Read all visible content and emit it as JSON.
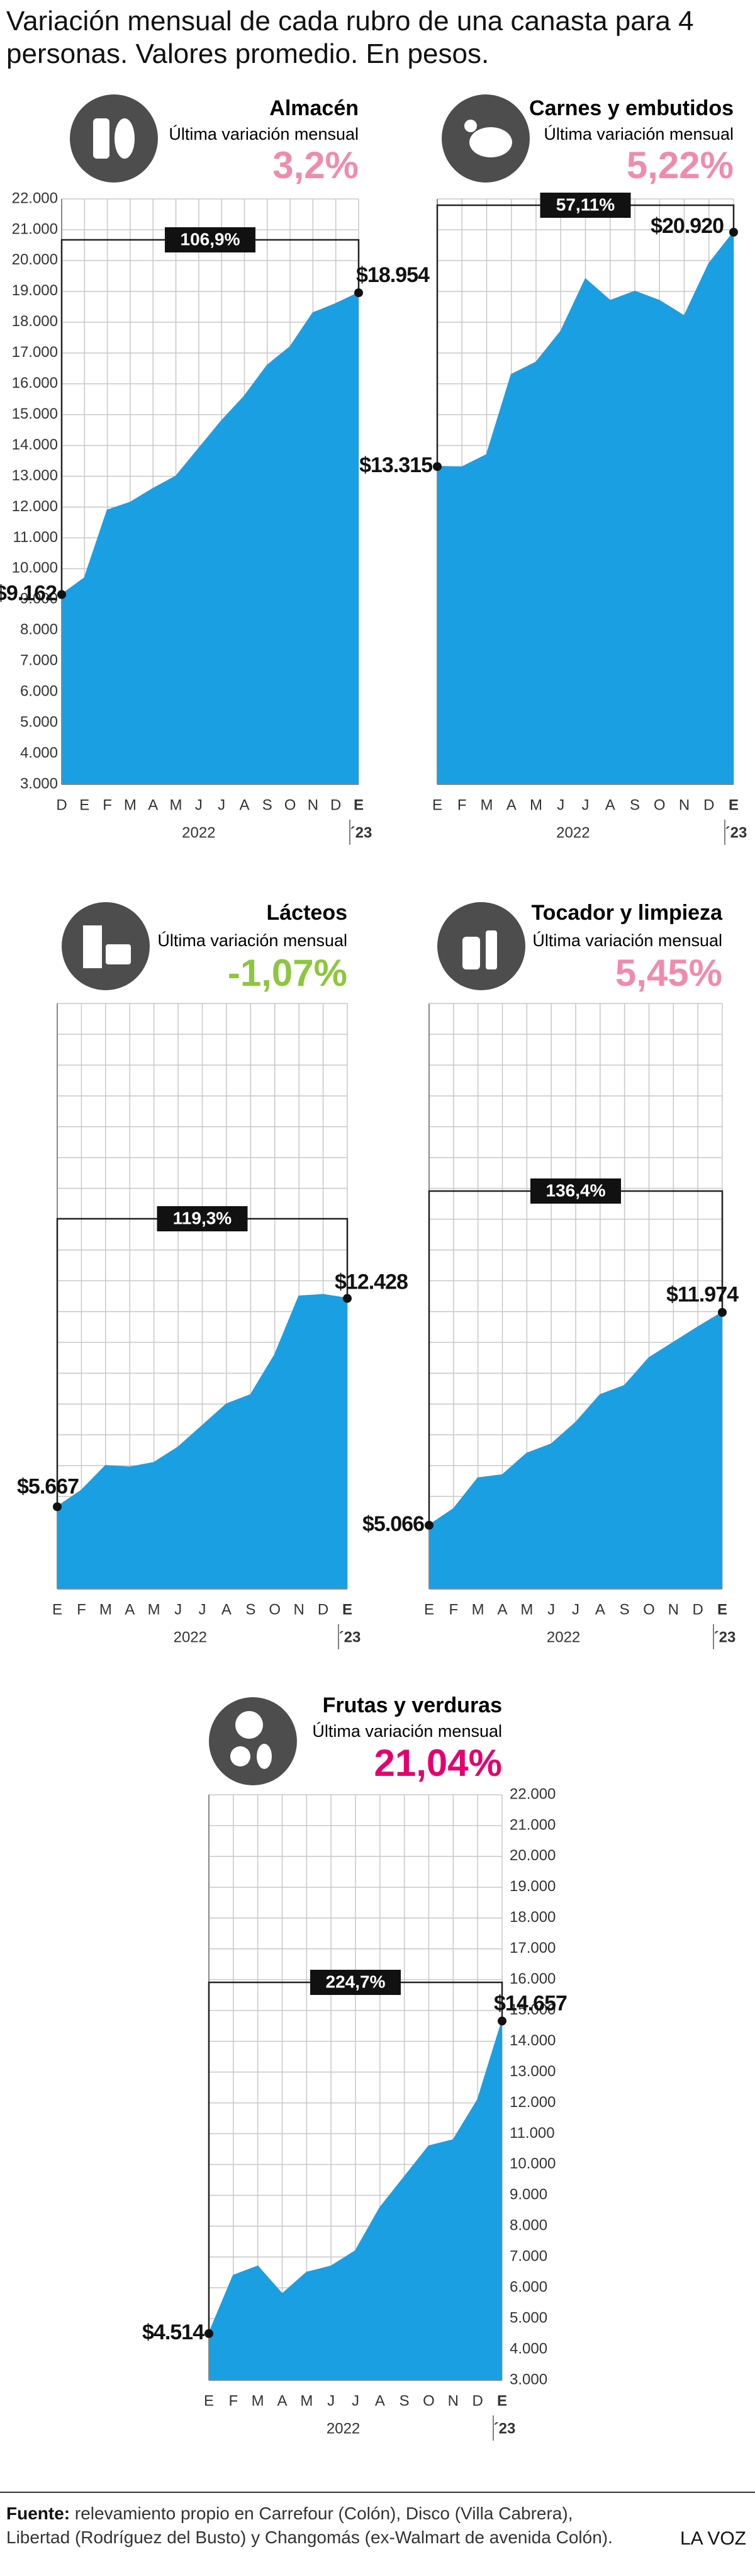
{
  "title": "Variación mensual de cada rubro de una canasta para 4 personas. Valores promedio. En pesos.",
  "chart_data": [
    {
      "type": "area",
      "title": "Almacén",
      "subtitle": "Última variación mensual",
      "highlight": "3,2%",
      "highlight_color": "#f08cab",
      "annotation": "106,9%",
      "categories": [
        "D",
        "E",
        "F",
        "M",
        "A",
        "M",
        "J",
        "J",
        "A",
        "S",
        "O",
        "N",
        "D",
        "E"
      ],
      "year_labels": [
        "2022",
        "´23"
      ],
      "values": [
        9162,
        9700,
        11900,
        12150,
        12600,
        13000,
        13900,
        14800,
        15600,
        16600,
        17200,
        18300,
        18600,
        18954
      ],
      "value_labels": [
        "$9.162",
        null,
        null,
        null,
        null,
        null,
        null,
        null,
        null,
        null,
        null,
        null,
        null,
        "$18.954"
      ],
      "color": "#1a9fe3",
      "ylim": [
        3000,
        22000
      ],
      "tick_labels": "left",
      "grid": true,
      "yticks": [
        {
          "value": 3000,
          "label": "3.000"
        },
        {
          "value": 4000,
          "label": "4.000"
        },
        {
          "value": 5000,
          "label": "5.000"
        },
        {
          "value": 6000,
          "label": "6.000"
        },
        {
          "value": 7000,
          "label": "7.000"
        },
        {
          "value": 8000,
          "label": "8.000"
        },
        {
          "value": 9000,
          "label": "9.000"
        },
        {
          "value": 10000,
          "label": "10.000"
        },
        {
          "value": 11000,
          "label": "11.000"
        },
        {
          "value": 12000,
          "label": "12.000"
        },
        {
          "value": 13000,
          "label": "13.000"
        },
        {
          "value": 14000,
          "label": "14.000"
        },
        {
          "value": 15000,
          "label": "15.000"
        },
        {
          "value": 16000,
          "label": "16.000"
        },
        {
          "value": 17000,
          "label": "17.000"
        },
        {
          "value": 18000,
          "label": "18.000"
        },
        {
          "value": 19000,
          "label": "19.000"
        },
        {
          "value": 20000,
          "label": "20.000"
        },
        {
          "value": 21000,
          "label": "21.000"
        },
        {
          "value": 22000,
          "label": "22.000"
        }
      ]
    },
    {
      "type": "area",
      "title": "Carnes y embutidos",
      "subtitle": "Última variación mensual",
      "highlight": "5,22%",
      "highlight_color": "#f08cab",
      "annotation": "57,11%",
      "categories": [
        "E",
        "F",
        "M",
        "A",
        "M",
        "J",
        "J",
        "A",
        "S",
        "O",
        "N",
        "D",
        "E"
      ],
      "year_labels": [
        "2022",
        "´23"
      ],
      "values": [
        13315,
        13300,
        13700,
        16300,
        16700,
        17700,
        19400,
        18700,
        19000,
        18700,
        18200,
        19900,
        20920
      ],
      "value_labels": [
        "$13.315",
        null,
        null,
        null,
        null,
        null,
        null,
        null,
        null,
        null,
        null,
        null,
        "$20.920"
      ],
      "color": "#1a9fe3",
      "ylim": [
        3000,
        22000
      ],
      "tick_labels": "none",
      "grid": true,
      "yticks": [
        3000,
        4000,
        5000,
        6000,
        7000,
        8000,
        9000,
        10000,
        11000,
        12000,
        13000,
        14000,
        15000,
        16000,
        17000,
        18000,
        19000,
        20000,
        21000,
        22000
      ]
    },
    {
      "type": "area",
      "title": "Lácteos",
      "subtitle": "Última variación mensual",
      "highlight": "-1,07%",
      "highlight_color": "#8dc63f",
      "annotation": "119,3%",
      "categories": [
        "E",
        "F",
        "M",
        "A",
        "M",
        "J",
        "J",
        "A",
        "S",
        "O",
        "N",
        "D",
        "E"
      ],
      "year_labels": [
        "2022",
        "´23"
      ],
      "values": [
        5667,
        6200,
        7000,
        6950,
        7100,
        7600,
        8300,
        9000,
        9300,
        10600,
        12500,
        12550,
        12428
      ],
      "value_labels": [
        "$5.667",
        null,
        null,
        null,
        null,
        null,
        null,
        null,
        null,
        null,
        null,
        null,
        "$12.428"
      ],
      "color": "#1a9fe3",
      "ylim": [
        3000,
        22000
      ],
      "tick_labels": "none",
      "grid": true,
      "yticks": [
        3000,
        4000,
        5000,
        6000,
        7000,
        8000,
        9000,
        10000,
        11000,
        12000,
        13000,
        14000,
        15000,
        16000,
        17000,
        18000,
        19000,
        20000,
        21000,
        22000
      ]
    },
    {
      "type": "area",
      "title": "Tocador y limpieza",
      "subtitle": "Última variación mensual",
      "highlight": "5,45%",
      "highlight_color": "#f08cab",
      "annotation": "136,4%",
      "categories": [
        "E",
        "F",
        "M",
        "A",
        "M",
        "J",
        "J",
        "A",
        "S",
        "O",
        "N",
        "D",
        "E"
      ],
      "year_labels": [
        "2022",
        "´23"
      ],
      "values": [
        5066,
        5600,
        6600,
        6700,
        7400,
        7700,
        8400,
        9300,
        9600,
        10500,
        11000,
        11500,
        11974
      ],
      "value_labels": [
        "$5.066",
        null,
        null,
        null,
        null,
        null,
        null,
        null,
        null,
        null,
        null,
        null,
        "$11.974"
      ],
      "color": "#1a9fe3",
      "ylim": [
        3000,
        22000
      ],
      "tick_labels": "none",
      "grid": true,
      "yticks": [
        3000,
        4000,
        5000,
        6000,
        7000,
        8000,
        9000,
        10000,
        11000,
        12000,
        13000,
        14000,
        15000,
        16000,
        17000,
        18000,
        19000,
        20000,
        21000,
        22000
      ]
    },
    {
      "type": "area",
      "title": "Frutas y verduras",
      "subtitle": "Última variación mensual",
      "highlight": "21,04%",
      "highlight_color": "#e5006e",
      "annotation": "224,7%",
      "categories": [
        "E",
        "F",
        "M",
        "A",
        "M",
        "J",
        "J",
        "A",
        "S",
        "O",
        "N",
        "D",
        "E"
      ],
      "year_labels": [
        "2022",
        "´23"
      ],
      "values": [
        4514,
        6400,
        6700,
        5800,
        6500,
        6700,
        7200,
        8600,
        9600,
        10600,
        10800,
        12100,
        14657
      ],
      "value_labels": [
        "$4.514",
        null,
        null,
        null,
        null,
        null,
        null,
        null,
        null,
        null,
        null,
        null,
        "$14.657"
      ],
      "color": "#1a9fe3",
      "ylim": [
        3000,
        22000
      ],
      "tick_labels": "right",
      "grid": true,
      "yticks": [
        {
          "value": 3000,
          "label": "3.000"
        },
        {
          "value": 4000,
          "label": "4.000"
        },
        {
          "value": 5000,
          "label": "5.000"
        },
        {
          "value": 6000,
          "label": "6.000"
        },
        {
          "value": 7000,
          "label": "7.000"
        },
        {
          "value": 8000,
          "label": "8.000"
        },
        {
          "value": 9000,
          "label": "9.000"
        },
        {
          "value": 10000,
          "label": "10.000"
        },
        {
          "value": 11000,
          "label": "11.000"
        },
        {
          "value": 12000,
          "label": "12.000"
        },
        {
          "value": 13000,
          "label": "13.000"
        },
        {
          "value": 14000,
          "label": "14.000"
        },
        {
          "value": 15000,
          "label": "15.000"
        },
        {
          "value": 16000,
          "label": "16.000"
        },
        {
          "value": 17000,
          "label": "17.000"
        },
        {
          "value": 18000,
          "label": "18.000"
        },
        {
          "value": 19000,
          "label": "19.000"
        },
        {
          "value": 20000,
          "label": "20.000"
        },
        {
          "value": 21000,
          "label": "21.000"
        },
        {
          "value": 22000,
          "label": "22.000"
        }
      ]
    }
  ],
  "source_label": "Fuente:",
  "source": "relevamiento propio en Carrefour (Colón), Disco (Villa Cabrera), Libertad (Rodríguez del Busto) y Changomás (ex-Walmart de avenida Colón).",
  "brand": "LA VOZ"
}
